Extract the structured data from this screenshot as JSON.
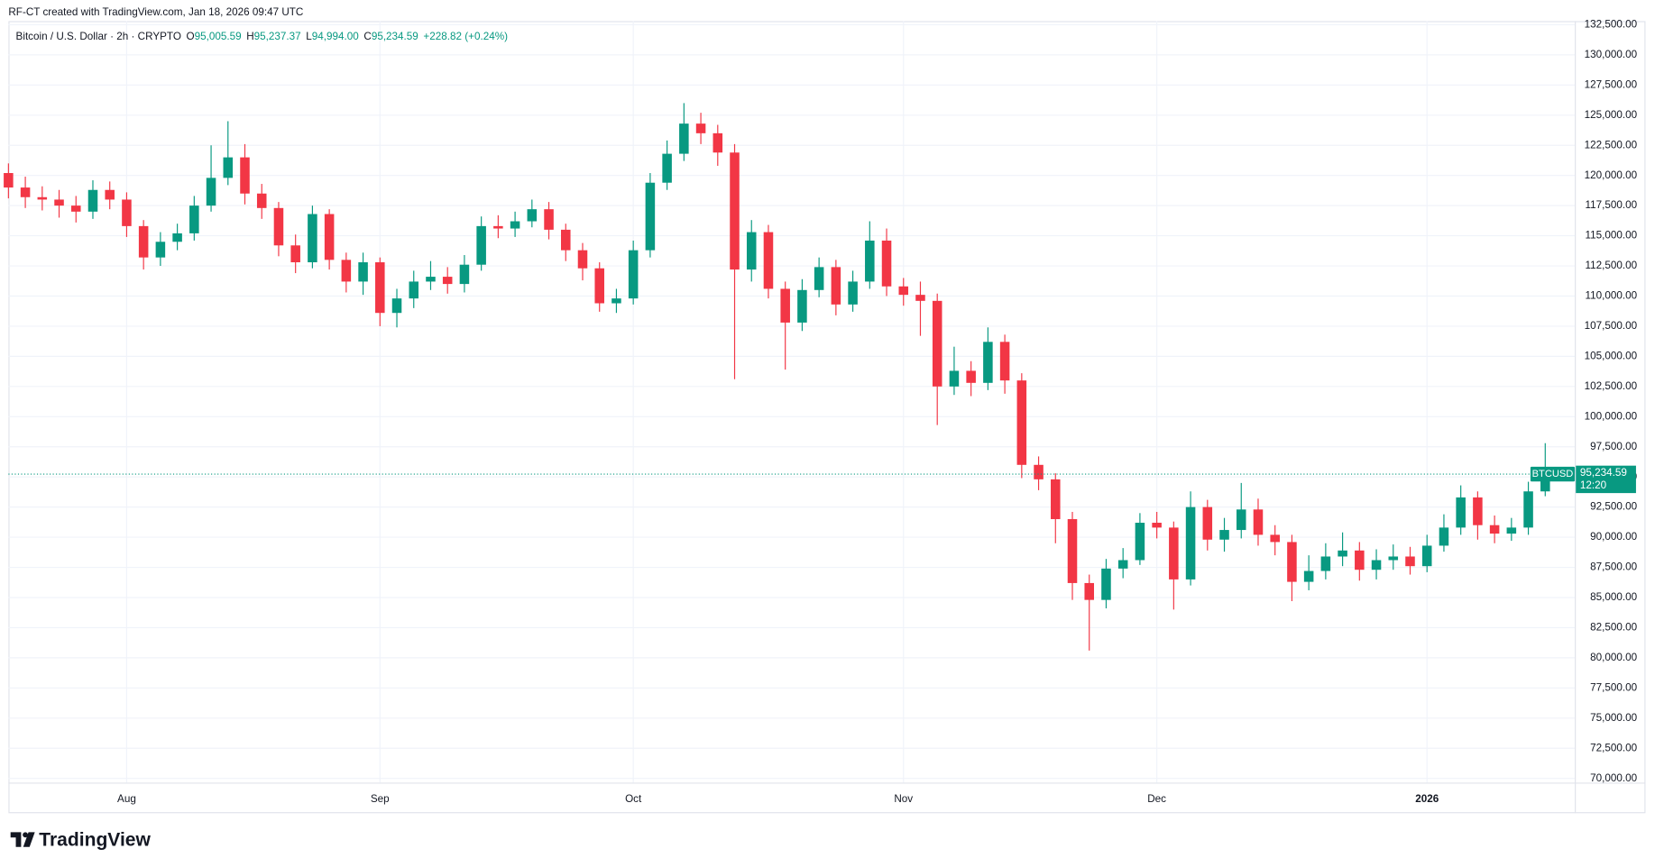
{
  "header": {
    "attribution": "RF-CT created with TradingView.com, Jan 18, 2026 09:47 UTC"
  },
  "legend": {
    "symbol": "Bitcoin / U.S. Dollar · 2h · CRYPTO",
    "open_label": "O",
    "open": "95,005.59",
    "high_label": "H",
    "high": "95,237.37",
    "low_label": "L",
    "low": "94,994.00",
    "close_label": "C",
    "close": "95,234.59",
    "change": "+228.82 (+0.24%)"
  },
  "chart_data": {
    "type": "candlestick",
    "categories": [
      null,
      null,
      null,
      null,
      null,
      null,
      null,
      "Aug",
      null,
      null,
      null,
      null,
      null,
      null,
      null,
      null,
      null,
      null,
      null,
      null,
      null,
      null,
      "Sep",
      null,
      null,
      null,
      null,
      null,
      null,
      null,
      null,
      null,
      null,
      null,
      null,
      null,
      null,
      "Oct",
      null,
      null,
      null,
      null,
      null,
      null,
      null,
      null,
      null,
      null,
      null,
      null,
      null,
      null,
      null,
      "Nov",
      null,
      null,
      null,
      null,
      null,
      null,
      null,
      null,
      null,
      null,
      null,
      null,
      null,
      null,
      "Dec",
      null,
      null,
      null,
      null,
      null,
      null,
      null,
      null,
      null,
      null,
      null,
      null,
      null,
      null,
      null,
      "2026",
      null,
      null,
      null,
      null,
      null,
      null,
      null
    ],
    "open": [
      120200,
      119000,
      118200,
      118000,
      117500,
      117000,
      118800,
      118000,
      115800,
      113200,
      114500,
      115200,
      117500,
      119800,
      121500,
      118500,
      117300,
      114200,
      112800,
      116800,
      113000,
      111200,
      112800,
      108600,
      109800,
      111200,
      111600,
      111000,
      112600,
      115800,
      115600,
      116200,
      117200,
      115500,
      113800,
      112300,
      109400,
      109800,
      113800,
      119400,
      121800,
      124300,
      123500,
      121900,
      112200,
      115300,
      110600,
      107800,
      110500,
      112400,
      109300,
      111200,
      114600,
      110800,
      110100,
      109600,
      102500,
      103800,
      102800,
      106200,
      103000,
      96000,
      94800,
      91500,
      86200,
      84800,
      87400,
      88100,
      91200,
      90800,
      86500,
      92500,
      89800,
      90600,
      92300,
      90200,
      89600,
      86300,
      87200,
      88400,
      88900,
      87300,
      88100,
      88400,
      87600,
      89300,
      90800,
      93300,
      91000,
      90300,
      90800,
      93800
    ],
    "high": [
      121000,
      119900,
      119100,
      118800,
      118300,
      119600,
      119500,
      118600,
      116300,
      115300,
      116000,
      118300,
      122500,
      124500,
      122600,
      119300,
      117800,
      115100,
      117500,
      117200,
      113600,
      113600,
      113200,
      110600,
      112100,
      112900,
      112400,
      113400,
      116600,
      116700,
      117000,
      118000,
      117800,
      116000,
      114400,
      112800,
      110600,
      114600,
      120200,
      122900,
      126000,
      125200,
      124200,
      122600,
      116300,
      115900,
      111200,
      111400,
      113200,
      113000,
      112100,
      116200,
      115600,
      111500,
      111200,
      110200,
      105800,
      104600,
      107400,
      106800,
      103600,
      96700,
      95300,
      92100,
      86900,
      88200,
      89100,
      92000,
      92100,
      91300,
      93800,
      93100,
      91600,
      94500,
      93200,
      91000,
      90200,
      88500,
      89500,
      90400,
      89600,
      89000,
      89400,
      89200,
      90200,
      91900,
      94300,
      93800,
      91800,
      91600,
      94600,
      97800
    ],
    "low": [
      118100,
      117300,
      117100,
      116500,
      116100,
      116400,
      117200,
      114900,
      112200,
      112500,
      113800,
      114600,
      117000,
      119200,
      117600,
      116400,
      113300,
      111900,
      112300,
      112200,
      110300,
      110100,
      107500,
      107400,
      109000,
      110500,
      110200,
      110300,
      112100,
      114800,
      114900,
      115700,
      114700,
      112900,
      111300,
      108700,
      108600,
      109300,
      113200,
      118800,
      121200,
      122600,
      120800,
      103100,
      111200,
      109800,
      103900,
      107100,
      109900,
      108400,
      108700,
      110600,
      110000,
      109200,
      106700,
      99300,
      101800,
      101700,
      102200,
      101900,
      94900,
      93900,
      89500,
      84800,
      80600,
      84100,
      86600,
      87700,
      89900,
      84000,
      86000,
      88900,
      88800,
      89900,
      89300,
      88500,
      84700,
      85600,
      86500,
      87600,
      86400,
      86500,
      87300,
      86900,
      87100,
      88800,
      90200,
      89800,
      89500,
      89700,
      90200,
      93400
    ],
    "close": [
      119000,
      118200,
      118000,
      117500,
      117000,
      118800,
      118000,
      115800,
      113200,
      114500,
      115200,
      117500,
      119800,
      121500,
      118500,
      117300,
      114200,
      112800,
      116800,
      113000,
      111200,
      112800,
      108600,
      109800,
      111200,
      111600,
      111000,
      112600,
      115800,
      115600,
      116200,
      117200,
      115500,
      113800,
      112300,
      109400,
      109800,
      113800,
      119400,
      121800,
      124300,
      123500,
      121900,
      112200,
      115300,
      110600,
      107800,
      110500,
      112400,
      109300,
      111200,
      114600,
      110800,
      110100,
      109600,
      102500,
      103800,
      102800,
      106200,
      103000,
      96000,
      94800,
      91500,
      86200,
      84800,
      87400,
      88100,
      91200,
      90800,
      86500,
      92500,
      89800,
      90600,
      92300,
      90200,
      89600,
      86300,
      87200,
      88400,
      88900,
      87300,
      88100,
      88400,
      87600,
      89300,
      90800,
      93300,
      91000,
      90300,
      90800,
      93800,
      95234.59
    ],
    "up_color": "#089981",
    "down_color": "#f23645",
    "ylim": [
      69650,
      132800
    ],
    "yticks": [
      {
        "value": 70000,
        "label": "70,000.00"
      },
      {
        "value": 72500,
        "label": "72,500.00"
      },
      {
        "value": 75000,
        "label": "75,000.00"
      },
      {
        "value": 77500,
        "label": "77,500.00"
      },
      {
        "value": 80000,
        "label": "80,000.00"
      },
      {
        "value": 82500,
        "label": "82,500.00"
      },
      {
        "value": 85000,
        "label": "85,000.00"
      },
      {
        "value": 87500,
        "label": "87,500.00"
      },
      {
        "value": 90000,
        "label": "90,000.00"
      },
      {
        "value": 92500,
        "label": "92,500.00"
      },
      {
        "value": 95000,
        "label": "95,000.00"
      },
      {
        "value": 97500,
        "label": "97,500.00"
      },
      {
        "value": 100000,
        "label": "100,000.00"
      },
      {
        "value": 102500,
        "label": "102,500.00"
      },
      {
        "value": 105000,
        "label": "105,000.00"
      },
      {
        "value": 107500,
        "label": "107,500.00"
      },
      {
        "value": 110000,
        "label": "110,000.00"
      },
      {
        "value": 112500,
        "label": "112,500.00"
      },
      {
        "value": 115000,
        "label": "115,000.00"
      },
      {
        "value": 117500,
        "label": "117,500.00"
      },
      {
        "value": 120000,
        "label": "120,000.00"
      },
      {
        "value": 122500,
        "label": "122,500.00"
      },
      {
        "value": 125000,
        "label": "125,000.00"
      },
      {
        "value": 127500,
        "label": "127,500.00"
      },
      {
        "value": 130000,
        "label": "130,000.00"
      },
      {
        "value": 132500,
        "label": "132,500.00"
      }
    ],
    "grid": true,
    "last_price_badge": {
      "symbol": "BTCUSD",
      "label": "95,234.59",
      "countdown": "12:20"
    }
  },
  "footer": {
    "logo": "TradingView"
  }
}
